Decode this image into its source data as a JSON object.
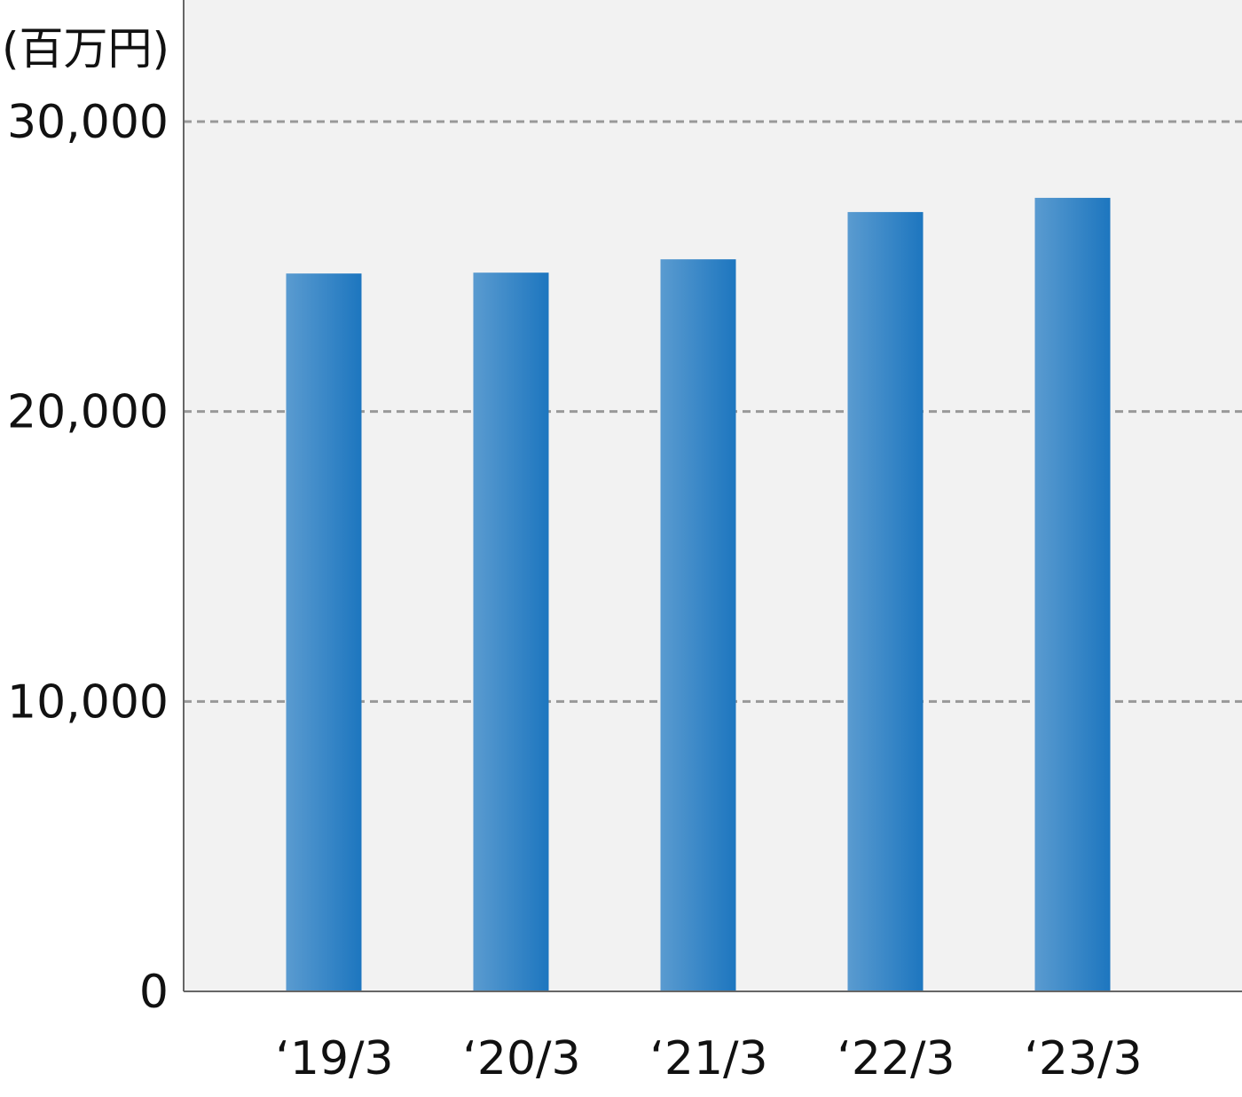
{
  "chart_data": {
    "type": "bar",
    "title": "",
    "ylabel": "(百万円)",
    "xlabel": "",
    "categories": [
      "‘19/3",
      "‘20/3",
      "‘21/3",
      "‘22/3",
      "‘23/3"
    ],
    "values": [
      24760,
      24790,
      25250,
      26880,
      27370
    ],
    "ylim": [
      0,
      30000
    ],
    "yticks": [
      0,
      10000,
      20000,
      30000
    ],
    "ytick_labels": [
      "0",
      "10,000",
      "20,000",
      "30,000"
    ],
    "grid": true,
    "legend": "none",
    "colors": {
      "bar_light": "#5a9bd0",
      "bar_dark": "#1d76bf",
      "plot_bg": "#f2f2f2",
      "grid": "#999999",
      "axis": "#666666"
    }
  }
}
